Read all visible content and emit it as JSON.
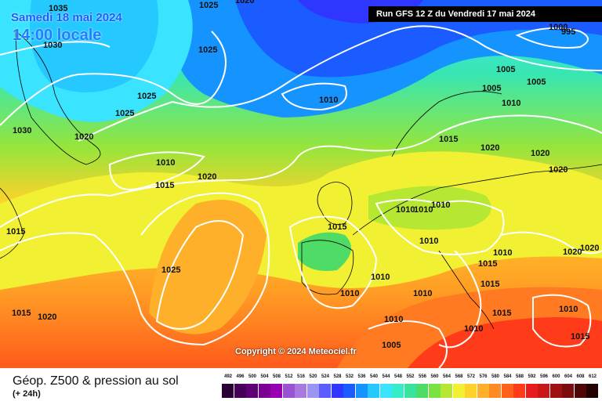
{
  "header": {
    "date": "Samedi 18 mai 2024",
    "time": "14:00 locale",
    "run": "Run GFS 12 Z du Vendredi 17 mai 2024",
    "copyright": "Copyright © 2024 Meteociel.fr"
  },
  "legend": {
    "title": "Géop. Z500 & pression au sol",
    "subtitle": "(+ 24h)",
    "scale_values": [
      "492",
      "496",
      "500",
      "504",
      "508",
      "512",
      "516",
      "520",
      "524",
      "528",
      "532",
      "536",
      "540",
      "544",
      "548",
      "552",
      "556",
      "560",
      "564",
      "568",
      "572",
      "576",
      "580",
      "584",
      "588",
      "592",
      "596",
      "600",
      "604",
      "608",
      "612"
    ],
    "scale_colors": [
      "#2b0033",
      "#460058",
      "#5f0076",
      "#7b0094",
      "#9900b3",
      "#9a53d1",
      "#a87ae0",
      "#9c94f2",
      "#5a5cff",
      "#2f36ff",
      "#1a5cff",
      "#1593ff",
      "#25c8ff",
      "#3ae4ff",
      "#37ecc8",
      "#38e49d",
      "#4fdc66",
      "#7ae241",
      "#b5e733",
      "#f2f032",
      "#ffd12b",
      "#ffb02a",
      "#ff8a22",
      "#ff601a",
      "#ff3b1a",
      "#e81c1c",
      "#c91818",
      "#9f1111",
      "#7a0e0e",
      "#4d0707",
      "#220000"
    ]
  },
  "map": {
    "isobar_labels": [
      {
        "text": "1035"
      },
      {
        "text": "1030"
      },
      {
        "text": "1025"
      },
      {
        "text": "1020"
      },
      {
        "text": "1025"
      },
      {
        "text": "1025"
      },
      {
        "text": "1030"
      },
      {
        "text": "1020"
      },
      {
        "text": "1010"
      },
      {
        "text": "1015"
      },
      {
        "text": "1020"
      },
      {
        "text": "1010"
      },
      {
        "text": "1000"
      },
      {
        "text": "995"
      },
      {
        "text": "1005"
      },
      {
        "text": "1005"
      },
      {
        "text": "1005"
      },
      {
        "text": "1010"
      },
      {
        "text": "1015"
      },
      {
        "text": "1020"
      },
      {
        "text": "1020"
      },
      {
        "text": "1020"
      },
      {
        "text": "1015"
      },
      {
        "text": "1010"
      },
      {
        "text": "1010"
      },
      {
        "text": "1010"
      },
      {
        "text": "1010"
      },
      {
        "text": "1010"
      },
      {
        "text": "1015"
      },
      {
        "text": "1020"
      },
      {
        "text": "1025"
      },
      {
        "text": "1025"
      },
      {
        "text": "1015"
      },
      {
        "text": "1020"
      },
      {
        "text": "1010"
      },
      {
        "text": "1010"
      },
      {
        "text": "1010"
      },
      {
        "text": "1015"
      },
      {
        "text": "1015"
      },
      {
        "text": "1015"
      },
      {
        "text": "1010"
      },
      {
        "text": "1010"
      },
      {
        "text": "1005"
      },
      {
        "text": "1010"
      },
      {
        "text": "1015"
      },
      {
        "text": "1020"
      }
    ]
  }
}
